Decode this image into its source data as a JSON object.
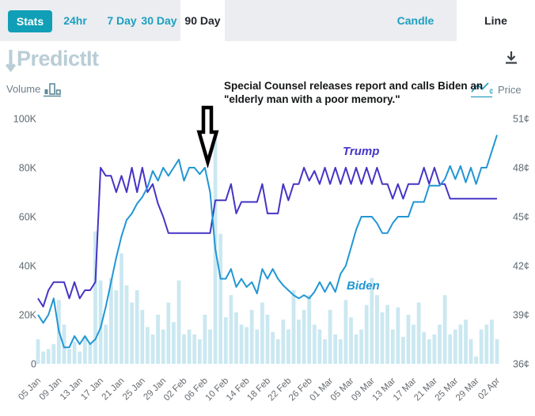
{
  "toolbar": {
    "stats_button": "Stats",
    "range_tabs": [
      {
        "label": "24hr",
        "active": false
      },
      {
        "label": "7 Day",
        "active": false
      },
      {
        "label": "30 Day",
        "active": false
      },
      {
        "label": "90 Day",
        "active": true
      }
    ],
    "type_tabs": [
      {
        "label": "Candle",
        "active": false
      },
      {
        "label": "Line",
        "active": true
      }
    ]
  },
  "logo_text": "PredictIt",
  "panel": {
    "volume_label": "Volume",
    "price_label": "Price"
  },
  "annotation": {
    "line1": "Special Counsel releases report and calls Biden an",
    "line2": "\"elderly man with a poor memory.\""
  },
  "colors": {
    "accent_teal": "#119fb7",
    "tab_text_teal": "#1c9fc0",
    "toolbar_bg": "#ebedf1",
    "logo": "#b9cdd6",
    "axis_text": "#5d6970",
    "trump_line": "#4534c6",
    "biden_line": "#2196d4",
    "volume_bar": "#cbe8f1"
  },
  "chart_data": {
    "type": "line",
    "title": "",
    "grid": false,
    "legend": "inline-series-labels",
    "x_axis_labels": [
      "05 Jan",
      "09 Jan",
      "13 Jan",
      "17 Jan",
      "21 Jan",
      "25 Jan",
      "29 Jan",
      "02 Feb",
      "06 Feb",
      "10 Feb",
      "14 Feb",
      "18 Feb",
      "22 Feb",
      "26 Feb",
      "01 Mar",
      "05 Mar",
      "09 Mar",
      "13 Mar",
      "17 Mar",
      "21 Mar",
      "25 Mar",
      "29 Mar",
      "02 Apr"
    ],
    "x_label_every_n_points": 4,
    "left_axis": {
      "name": "Volume",
      "ticks": [
        "0",
        "20K",
        "40K",
        "60K",
        "80K",
        "100K"
      ],
      "range_k": [
        0,
        100
      ]
    },
    "right_axis": {
      "name": "Price",
      "ticks": [
        "36¢",
        "39¢",
        "42¢",
        "45¢",
        "48¢",
        "51¢"
      ],
      "range_cents": [
        36,
        51
      ]
    },
    "series": [
      {
        "name": "Trump",
        "color": "#4534c6",
        "unit": "cents",
        "values_cents": [
          40,
          39.5,
          40.5,
          41,
          41,
          41,
          40,
          41,
          40,
          40.5,
          40.5,
          41,
          48,
          47.5,
          47.5,
          46.5,
          47.5,
          46.5,
          48,
          46.5,
          48,
          46.5,
          47,
          45.8,
          45,
          44,
          44,
          44,
          44,
          44,
          44,
          44,
          44,
          44,
          46,
          46,
          46,
          47,
          45.2,
          45.9,
          45.9,
          45.9,
          45.9,
          47,
          45.2,
          45.2,
          45.2,
          47,
          46,
          47,
          47,
          48,
          47.2,
          47.8,
          47,
          48,
          47,
          48,
          47,
          48,
          47,
          48,
          47,
          48,
          47,
          48,
          47,
          47,
          46.1,
          47,
          46.1,
          47,
          47,
          47,
          48,
          47,
          48,
          47,
          47,
          46.1,
          46.1,
          46.1,
          46.1,
          46.1,
          46.1,
          46.1,
          46.1,
          46.1,
          46.1
        ]
      },
      {
        "name": "Biden",
        "color": "#2196d4",
        "unit": "cents",
        "values_cents": [
          39,
          38.5,
          39,
          40,
          38,
          37,
          37,
          37.7,
          37.2,
          37.7,
          37.2,
          37.5,
          38.2,
          39.5,
          41,
          42.5,
          43.8,
          44.8,
          45.2,
          45.8,
          46.2,
          46.8,
          47.8,
          47.2,
          48,
          47.5,
          48,
          48.5,
          47.2,
          48,
          48,
          47.6,
          48,
          46.5,
          43,
          41.2,
          41.2,
          41.8,
          40.7,
          41.2,
          40.7,
          41,
          40.3,
          41.8,
          41.2,
          41.8,
          41.2,
          40.8,
          40.5,
          40.2,
          40,
          40.2,
          40,
          40.4,
          41,
          40.4,
          41,
          40.4,
          41.5,
          42,
          43.1,
          44.2,
          45,
          45,
          45,
          44.6,
          44,
          44,
          44.6,
          45,
          45,
          45,
          45.9,
          45.9,
          45.9,
          46.9,
          46.9,
          46.9,
          47.3,
          48.1,
          47.3,
          48.1,
          47.1,
          48,
          47,
          48,
          48,
          49,
          50
        ]
      }
    ],
    "volume_bars": {
      "name": "Volume",
      "color": "#cbe8f1",
      "unit": "K",
      "values_k": [
        10,
        5,
        6,
        8,
        26,
        16,
        6,
        9,
        5,
        11,
        8,
        54,
        34,
        16,
        35,
        30,
        45,
        32,
        25,
        30,
        22,
        15,
        12,
        20,
        14,
        25,
        17,
        34,
        12,
        14,
        12,
        10,
        20,
        14,
        95,
        53,
        19,
        28,
        21,
        16,
        15,
        22,
        14,
        25,
        20,
        13,
        10,
        18,
        14,
        30,
        18,
        22,
        28,
        16,
        14,
        10,
        22,
        12,
        10,
        26,
        19,
        12,
        14,
        24,
        35,
        28,
        21,
        24,
        14,
        23,
        11,
        20,
        16,
        25,
        13,
        10,
        12,
        16,
        28,
        12,
        14,
        16,
        18,
        10,
        3,
        14,
        16,
        18,
        10
      ]
    }
  }
}
